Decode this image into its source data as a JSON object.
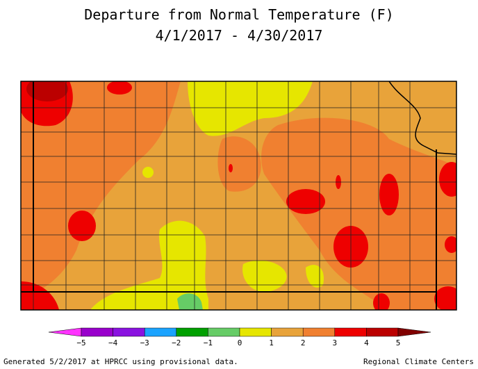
{
  "title": [
    "Departure from Normal Temperature (F)",
    "4/1/2017 - 4/30/2017"
  ],
  "legend": {
    "ticks": [
      "−5",
      "−4",
      "−3",
      "−2",
      "−1",
      "0",
      "1",
      "2",
      "3",
      "4",
      "5"
    ],
    "colors": [
      "#ff33ff",
      "#9900cc",
      "#8a12e0",
      "#1aa3ff",
      "#00a000",
      "#66cc66",
      "#e6e600",
      "#e8a33a",
      "#f08030",
      "#ee0000",
      "#bb0000",
      "#800000"
    ]
  },
  "footer": {
    "left": "Generated 5/2/2017 at HPRCC using provisional data.",
    "right": "Regional Climate Centers"
  }
}
